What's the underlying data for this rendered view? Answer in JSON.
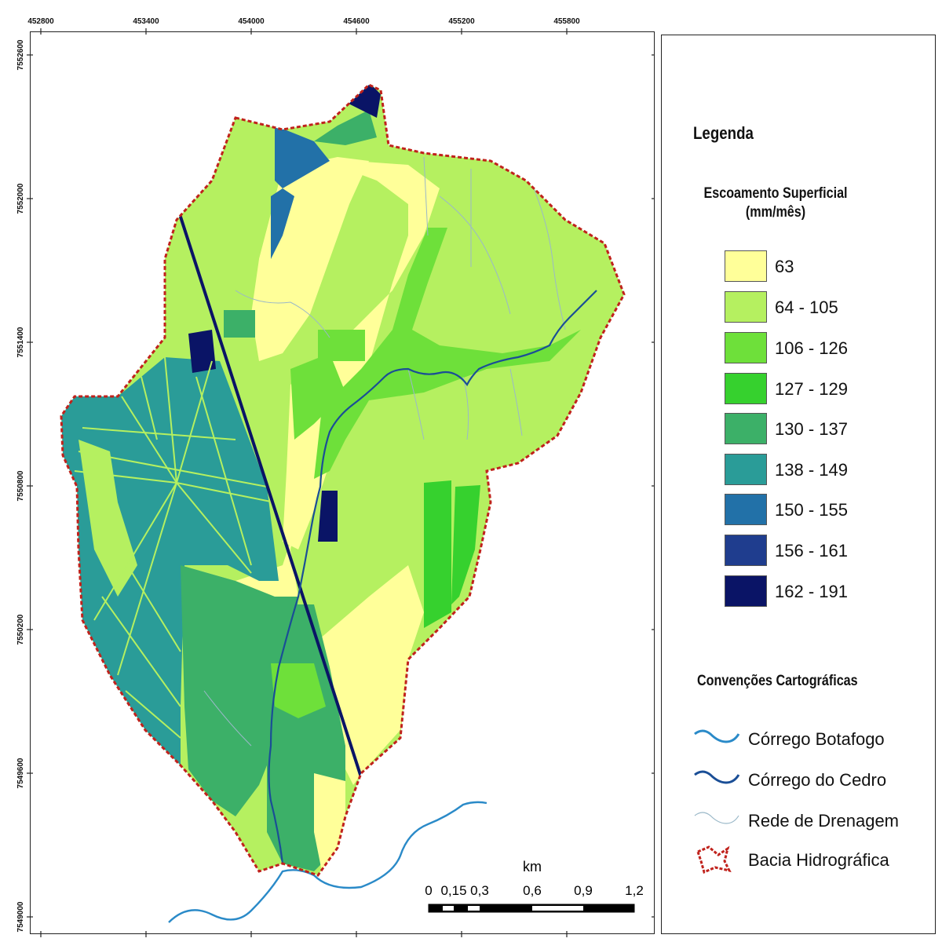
{
  "map": {
    "x_ticks": [
      "452800",
      "453400",
      "454000",
      "454600",
      "455200",
      "455800"
    ],
    "y_ticks": [
      "7552600",
      "7552000",
      "7551400",
      "7550800",
      "7550200",
      "7549600",
      "7549000"
    ]
  },
  "scale_bar": {
    "unit": "km",
    "labels": [
      "0",
      "0,15",
      "0,3",
      "0,6",
      "0,9",
      "1,2"
    ]
  },
  "legend": {
    "title": "Legenda",
    "subtitle": "Escoamento Superficial (mm/mês)",
    "classes": [
      {
        "label": "63",
        "color": "#ffff99"
      },
      {
        "label": "64 - 105",
        "color": "#b5f060"
      },
      {
        "label": "106 - 126",
        "color": "#6ee03a"
      },
      {
        "label": "127 - 129",
        "color": "#36d12e"
      },
      {
        "label": "130 - 137",
        "color": "#3cb068"
      },
      {
        "label": "138 - 149",
        "color": "#2a9c98"
      },
      {
        "label": "150 - 155",
        "color": "#2271a8"
      },
      {
        "label": "156 - 161",
        "color": "#1f3d8e"
      },
      {
        "label": "162 - 191",
        "color": "#0a1466"
      }
    ]
  },
  "conventions": {
    "title": "Convenções Cartográficas",
    "items": [
      {
        "label": "Córrego Botafogo",
        "icon": "river-icon",
        "color": "#2a8ac8"
      },
      {
        "label": "Córrego do Cedro",
        "icon": "stream-icon",
        "color": "#1a4e96"
      },
      {
        "label": "Rede de Drenagem",
        "icon": "drainage-icon",
        "color": "#9ab8c8"
      },
      {
        "label": "Bacia Hidrográfica",
        "icon": "watershed-boundary-icon",
        "color": "#c0221c"
      }
    ]
  }
}
